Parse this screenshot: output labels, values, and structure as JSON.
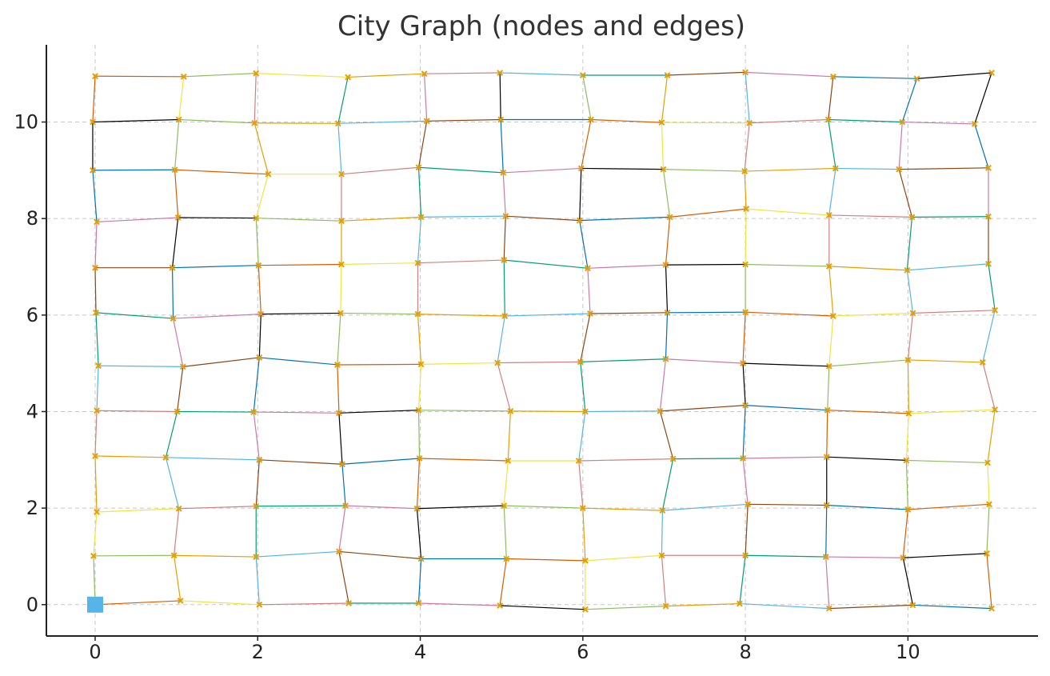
{
  "chart_data": {
    "type": "network",
    "title": "City Graph (nodes and edges)",
    "xlabel": "",
    "ylabel": "",
    "xlim": [
      -0.6,
      11.6
    ],
    "ylim": [
      -0.65,
      11.6
    ],
    "x_ticks": [
      0,
      2,
      4,
      6,
      8,
      10
    ],
    "y_ticks": [
      0,
      2,
      4,
      6,
      8,
      10
    ],
    "grid": true,
    "node_marker_color": "#e6a000",
    "start_marker_color": "#56b4e9",
    "edge_palette": [
      "#0072b2",
      "#009e73",
      "#e69f00",
      "#d55e00",
      "#cc79a7",
      "#56b4e9",
      "#f0e442",
      "#000000",
      "#8b4513",
      "#d08080",
      "#8fbc5f"
    ],
    "start_node": [
      0,
      0
    ],
    "node_rows": [
      [
        [
          0.0,
          0.0
        ],
        [
          1.05,
          0.08
        ],
        [
          2.02,
          0.0
        ],
        [
          3.12,
          0.03
        ],
        [
          3.98,
          0.03
        ],
        [
          4.98,
          -0.02
        ],
        [
          6.03,
          -0.1
        ],
        [
          7.02,
          -0.03
        ],
        [
          7.93,
          0.02
        ],
        [
          9.03,
          -0.08
        ],
        [
          10.06,
          -0.01
        ],
        [
          11.03,
          -0.08
        ]
      ],
      [
        [
          -0.02,
          1.01
        ],
        [
          0.97,
          1.02
        ],
        [
          1.98,
          0.99
        ],
        [
          3.0,
          1.1
        ],
        [
          4.01,
          0.95
        ],
        [
          5.06,
          0.95
        ],
        [
          6.03,
          0.91
        ],
        [
          6.97,
          1.02
        ],
        [
          8.0,
          1.02
        ],
        [
          8.99,
          0.99
        ],
        [
          9.94,
          0.97
        ],
        [
          10.97,
          1.06
        ]
      ],
      [
        [
          0.02,
          1.92
        ],
        [
          1.03,
          1.99
        ],
        [
          1.98,
          2.04
        ],
        [
          3.08,
          2.05
        ],
        [
          3.96,
          1.99
        ],
        [
          5.03,
          2.05
        ],
        [
          6.0,
          2.0
        ],
        [
          6.98,
          1.95
        ],
        [
          8.03,
          2.08
        ],
        [
          9.0,
          2.06
        ],
        [
          10.0,
          1.97
        ],
        [
          11.0,
          2.08
        ]
      ],
      [
        [
          0.0,
          3.08
        ],
        [
          0.87,
          3.05
        ],
        [
          2.02,
          3.0
        ],
        [
          3.04,
          2.91
        ],
        [
          3.99,
          3.03
        ],
        [
          5.08,
          2.98
        ],
        [
          5.95,
          2.98
        ],
        [
          7.11,
          3.02
        ],
        [
          7.97,
          3.03
        ],
        [
          9.0,
          3.06
        ],
        [
          9.98,
          2.99
        ],
        [
          10.98,
          2.94
        ]
      ],
      [
        [
          0.02,
          4.02
        ],
        [
          1.01,
          4.0
        ],
        [
          1.95,
          3.99
        ],
        [
          3.0,
          3.97
        ],
        [
          3.98,
          4.03
        ],
        [
          5.11,
          4.01
        ],
        [
          6.03,
          4.0
        ],
        [
          6.95,
          4.01
        ],
        [
          8.0,
          4.13
        ],
        [
          9.01,
          4.03
        ],
        [
          10.01,
          3.96
        ],
        [
          11.07,
          4.04
        ]
      ],
      [
        [
          0.04,
          4.95
        ],
        [
          1.08,
          4.93
        ],
        [
          2.02,
          5.12
        ],
        [
          2.98,
          4.97
        ],
        [
          4.01,
          4.98
        ],
        [
          4.95,
          5.01
        ],
        [
          5.97,
          5.03
        ],
        [
          7.02,
          5.09
        ],
        [
          7.97,
          5.0
        ],
        [
          9.03,
          4.94
        ],
        [
          10.0,
          5.07
        ],
        [
          10.92,
          5.02
        ]
      ],
      [
        [
          0.01,
          6.05
        ],
        [
          0.96,
          5.93
        ],
        [
          2.04,
          6.02
        ],
        [
          3.02,
          6.04
        ],
        [
          3.97,
          6.02
        ],
        [
          5.04,
          5.98
        ],
        [
          6.09,
          6.03
        ],
        [
          7.04,
          6.05
        ],
        [
          8.0,
          6.06
        ],
        [
          9.08,
          5.98
        ],
        [
          10.06,
          6.04
        ],
        [
          11.07,
          6.1
        ]
      ],
      [
        [
          0.0,
          6.98
        ],
        [
          0.95,
          6.98
        ],
        [
          2.01,
          7.03
        ],
        [
          3.03,
          7.05
        ],
        [
          3.97,
          7.08
        ],
        [
          5.03,
          7.14
        ],
        [
          6.06,
          6.97
        ],
        [
          7.02,
          7.04
        ],
        [
          8.0,
          7.05
        ],
        [
          9.03,
          7.01
        ],
        [
          9.99,
          6.93
        ],
        [
          10.99,
          7.06
        ]
      ],
      [
        [
          0.02,
          7.93
        ],
        [
          1.02,
          8.02
        ],
        [
          1.98,
          8.01
        ],
        [
          3.03,
          7.95
        ],
        [
          4.01,
          8.03
        ],
        [
          5.05,
          8.05
        ],
        [
          5.96,
          7.96
        ],
        [
          7.07,
          8.03
        ],
        [
          8.01,
          8.2
        ],
        [
          9.03,
          8.07
        ],
        [
          10.05,
          8.03
        ],
        [
          10.99,
          8.04
        ]
      ],
      [
        [
          -0.03,
          9.0
        ],
        [
          0.98,
          9.01
        ],
        [
          2.13,
          8.92
        ],
        [
          3.03,
          8.92
        ],
        [
          3.98,
          9.06
        ],
        [
          5.02,
          8.95
        ],
        [
          5.98,
          9.04
        ],
        [
          6.99,
          9.02
        ],
        [
          7.99,
          8.98
        ],
        [
          9.11,
          9.04
        ],
        [
          9.89,
          9.02
        ],
        [
          10.99,
          9.05
        ]
      ],
      [
        [
          -0.03,
          10.0
        ],
        [
          1.03,
          10.05
        ],
        [
          1.96,
          9.98
        ],
        [
          2.99,
          9.97
        ],
        [
          4.08,
          10.02
        ],
        [
          4.99,
          10.05
        ],
        [
          6.1,
          10.05
        ],
        [
          6.97,
          9.99
        ],
        [
          8.05,
          9.98
        ],
        [
          9.02,
          10.05
        ],
        [
          9.93,
          10.0
        ],
        [
          10.82,
          9.96
        ]
      ],
      [
        [
          0.0,
          10.95
        ],
        [
          1.09,
          10.94
        ],
        [
          1.98,
          11.01
        ],
        [
          3.11,
          10.93
        ],
        [
          4.05,
          11.0
        ],
        [
          4.98,
          11.02
        ],
        [
          6.0,
          10.97
        ],
        [
          7.04,
          10.97
        ],
        [
          8.0,
          11.03
        ],
        [
          9.08,
          10.94
        ],
        [
          10.11,
          10.9
        ],
        [
          11.03,
          11.02
        ]
      ]
    ]
  }
}
